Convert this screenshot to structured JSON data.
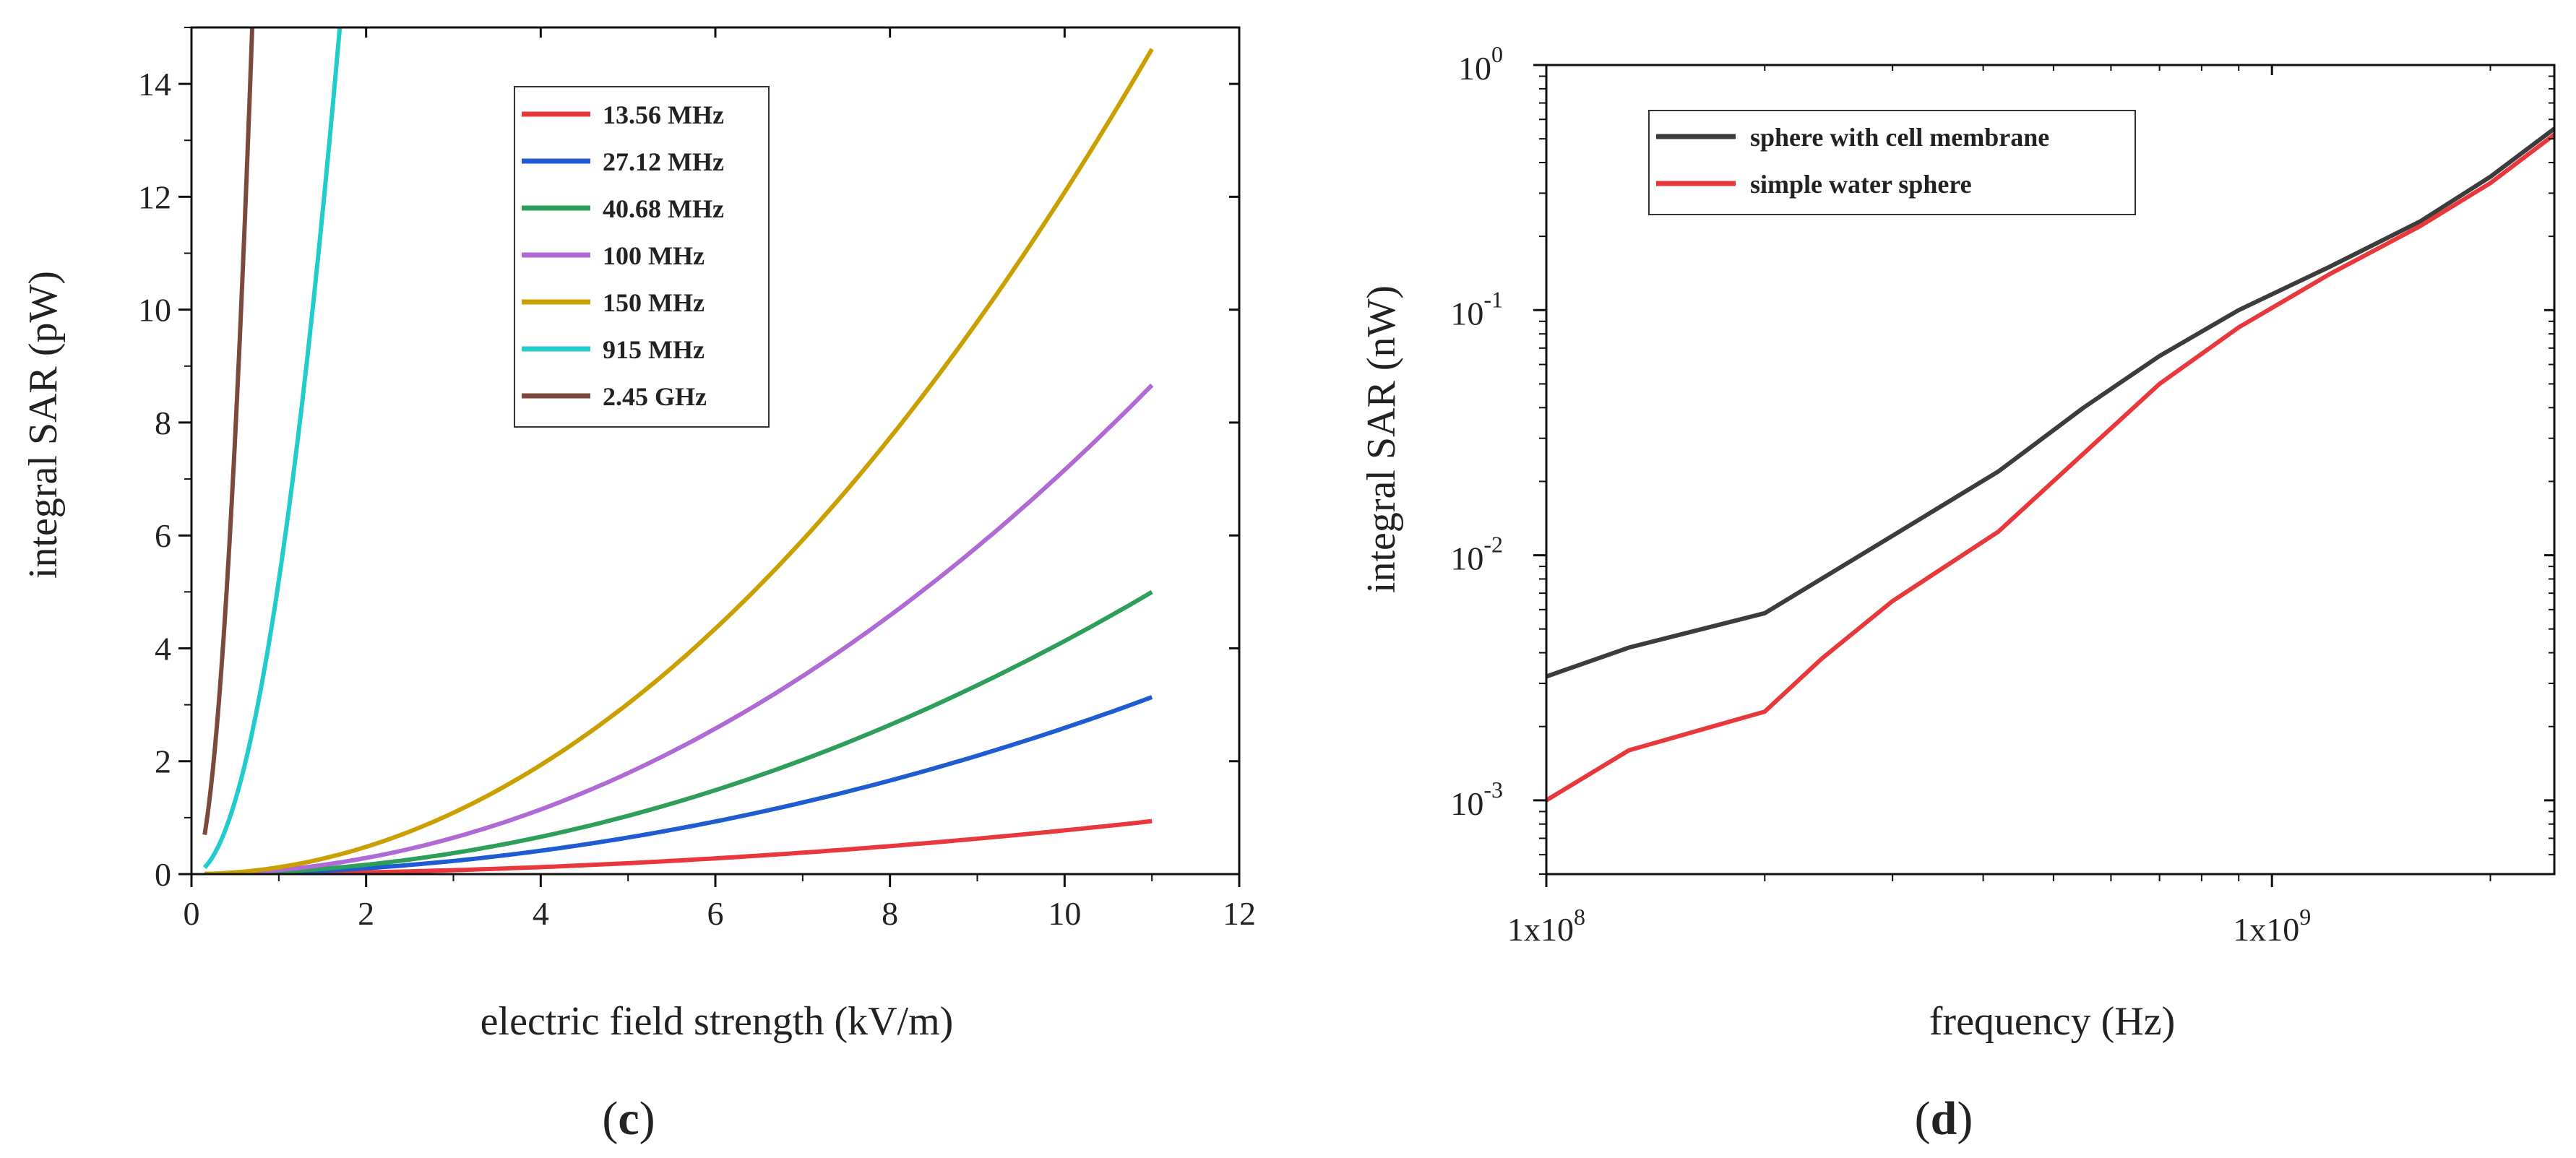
{
  "chart_data": [
    {
      "type": "line",
      "panel": "c",
      "xlabel": "electric field strength (kV/m)",
      "ylabel": "integral SAR (pW)",
      "xlim": [
        0,
        12
      ],
      "ylim": [
        0,
        15
      ],
      "xticks": [
        0,
        2,
        4,
        6,
        8,
        10,
        12
      ],
      "yticks": [
        0,
        2,
        4,
        6,
        8,
        10,
        12,
        14
      ],
      "legend_position": "top-center",
      "series": [
        {
          "name": "13.56 MHz",
          "color": "#e8383b",
          "coef": 0.00775,
          "x": [
            0.15,
            11
          ]
        },
        {
          "name": "27.12 MHz",
          "color": "#1f5bd1",
          "coef": 0.0259,
          "x": [
            0.15,
            11
          ]
        },
        {
          "name": "40.68 MHz",
          "color": "#2e9e5b",
          "coef": 0.0413,
          "x": [
            0.15,
            11
          ]
        },
        {
          "name": "100 MHz",
          "color": "#b06ad6",
          "coef": 0.0716,
          "x": [
            0.15,
            11
          ]
        },
        {
          "name": "150 MHz",
          "color": "#c9a000",
          "coef": 0.1208,
          "x": [
            0.15,
            11
          ]
        },
        {
          "name": "915 MHz",
          "color": "#22cccc",
          "coef": 5.2,
          "x": [
            0.15,
            1.7
          ]
        },
        {
          "name": "2.45 GHz",
          "color": "#7a4a3e",
          "coef": 31.0,
          "x": [
            0.15,
            0.7
          ]
        }
      ]
    },
    {
      "type": "line",
      "panel": "d",
      "xscale": "log",
      "yscale": "log",
      "xlabel": "frequency (Hz)",
      "ylabel": "integral SAR (nW)",
      "xlim": [
        100000000,
        2450000000
      ],
      "ylim": [
        0.0005,
        1
      ],
      "xtick_labels": [
        {
          "value": 100000000,
          "base": "1x10",
          "exp": "8"
        },
        {
          "value": 1000000000,
          "base": "1x10",
          "exp": "9"
        }
      ],
      "ytick_labels": [
        {
          "value": 1,
          "base": "10",
          "exp": "0"
        },
        {
          "value": 0.1,
          "base": "10",
          "exp": "-1"
        },
        {
          "value": 0.01,
          "base": "10",
          "exp": "-2"
        },
        {
          "value": 0.001,
          "base": "10",
          "exp": "-3"
        }
      ],
      "legend_position": "top-left",
      "series": [
        {
          "name": "sphere with cell membrane",
          "color": "#3c3c3c",
          "x": [
            100000000,
            130000000,
            200000000,
            300000000,
            420000000,
            550000000,
            700000000,
            900000000,
            1200000000,
            1600000000,
            2000000000,
            2450000000
          ],
          "y": [
            0.0032,
            0.0042,
            0.0058,
            0.012,
            0.022,
            0.04,
            0.065,
            0.1,
            0.15,
            0.23,
            0.35,
            0.55
          ]
        },
        {
          "name": "simple water sphere",
          "color": "#e8383b",
          "x": [
            100000000,
            130000000,
            200000000,
            240000000,
            300000000,
            420000000,
            550000000,
            700000000,
            900000000,
            1200000000,
            1600000000,
            2000000000,
            2450000000
          ],
          "y": [
            0.001,
            0.0016,
            0.0023,
            0.0038,
            0.0065,
            0.0125,
            0.026,
            0.05,
            0.085,
            0.14,
            0.22,
            0.33,
            0.52
          ]
        }
      ]
    }
  ],
  "panel_labels": {
    "c": "c",
    "d": "d"
  }
}
